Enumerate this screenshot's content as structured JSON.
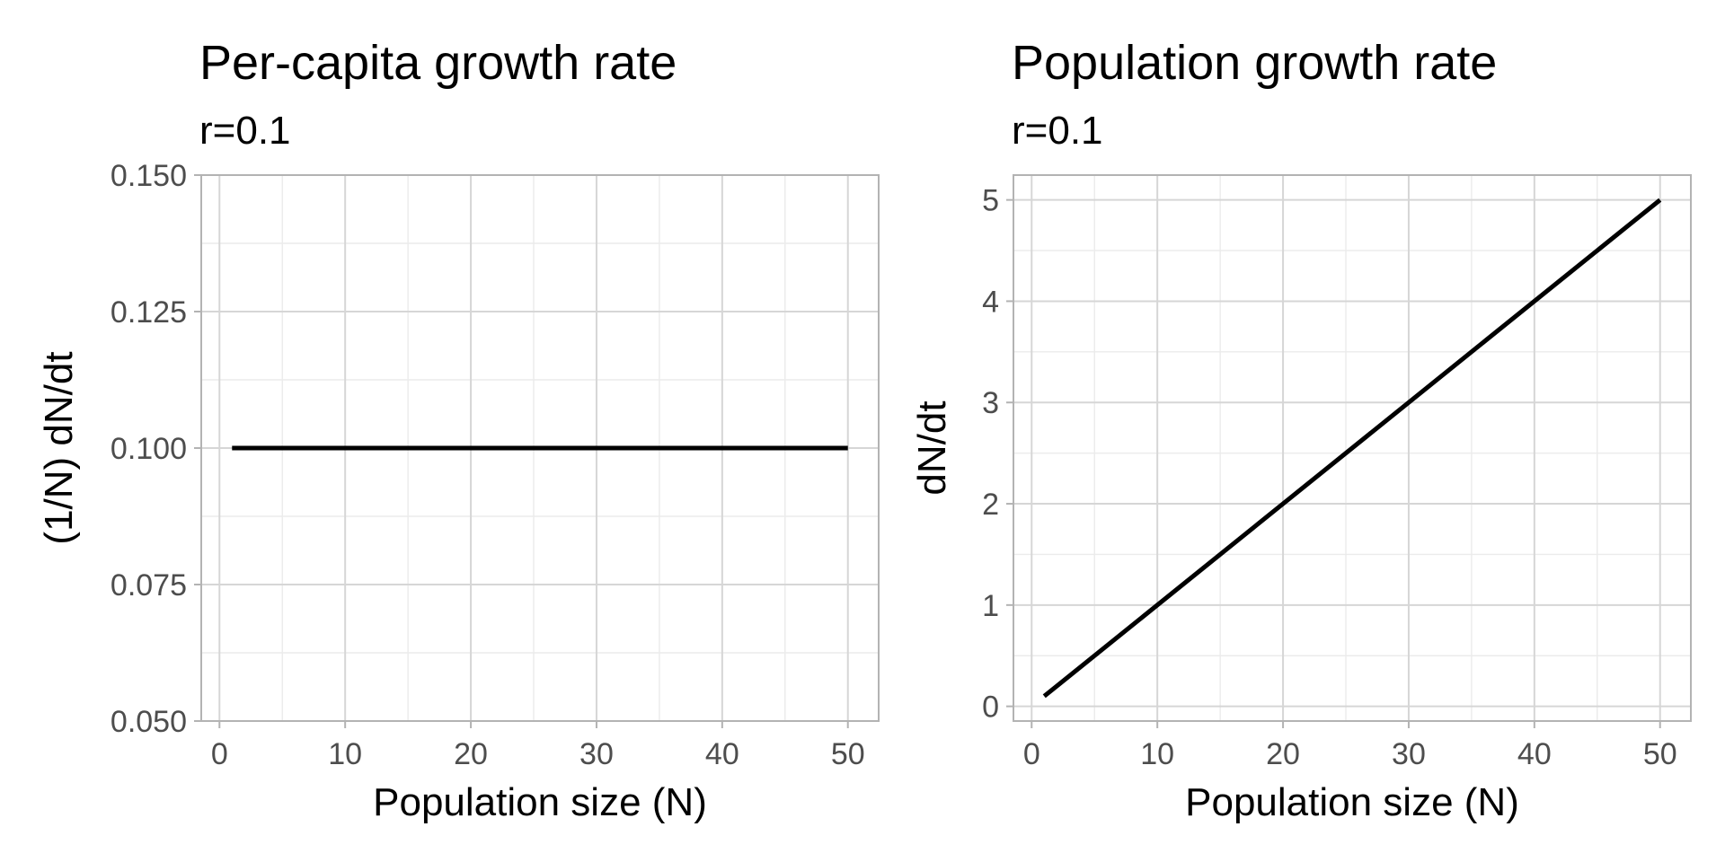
{
  "chart_data": [
    {
      "type": "line",
      "title": "Per-capita growth rate",
      "subtitle": "r=0.1",
      "xlabel": "Population size (N)",
      "ylabel": "(1/N) dN/dt",
      "xlim": [
        -1.45,
        52.45
      ],
      "ylim": [
        0.05,
        0.15
      ],
      "x_ticks": [
        0,
        10,
        20,
        30,
        40,
        50
      ],
      "x_tick_labels": [
        "0",
        "10",
        "20",
        "30",
        "40",
        "50"
      ],
      "y_ticks": [
        0.05,
        0.075,
        0.1,
        0.125,
        0.15
      ],
      "y_tick_labels": [
        "0.050",
        "0.075",
        "0.100",
        "0.125",
        "0.150"
      ],
      "grid": true,
      "series": [
        {
          "x": [
            1,
            50
          ],
          "y": [
            0.1,
            0.1
          ],
          "color": "#000000"
        }
      ]
    },
    {
      "type": "line",
      "title": "Population growth rate",
      "subtitle": "r=0.1",
      "xlabel": "Population size (N)",
      "ylabel": "dN/dt",
      "xlim": [
        -1.45,
        52.45
      ],
      "ylim": [
        -0.145,
        5.245
      ],
      "x_ticks": [
        0,
        10,
        20,
        30,
        40,
        50
      ],
      "x_tick_labels": [
        "0",
        "10",
        "20",
        "30",
        "40",
        "50"
      ],
      "y_ticks": [
        0,
        1,
        2,
        3,
        4,
        5
      ],
      "y_tick_labels": [
        "0",
        "1",
        "2",
        "3",
        "4",
        "5"
      ],
      "grid": true,
      "series": [
        {
          "x": [
            1,
            50
          ],
          "y": [
            0.1,
            5.0
          ],
          "color": "#000000"
        }
      ]
    }
  ]
}
